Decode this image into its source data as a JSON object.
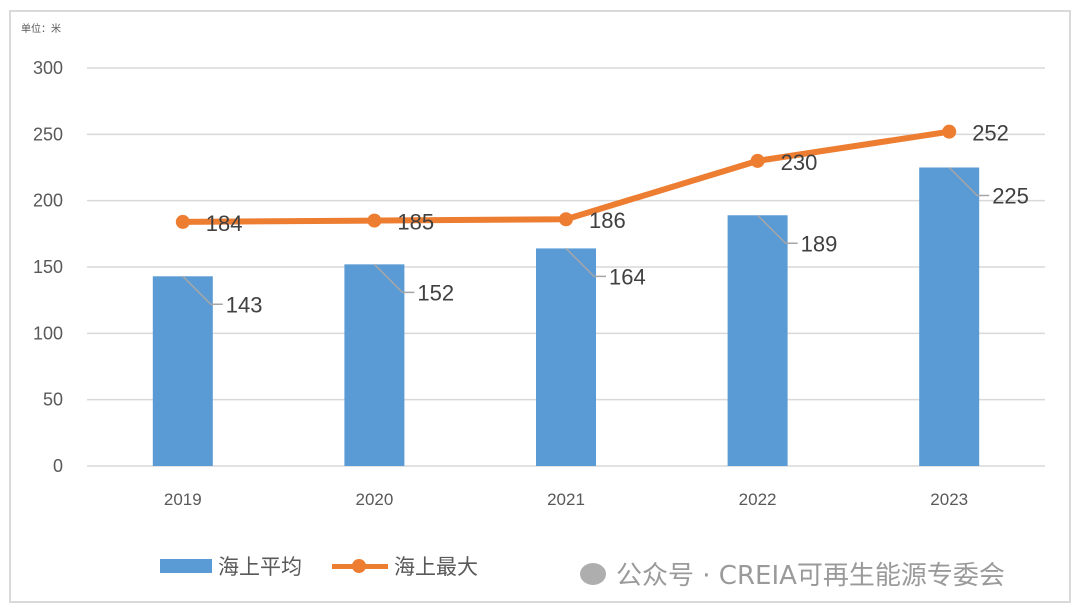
{
  "chart_data": {
    "type": "bar+line",
    "unit_label": "单位：米",
    "categories": [
      "2019",
      "2020",
      "2021",
      "2022",
      "2023"
    ],
    "series": [
      {
        "name": "海上平均",
        "type": "bar",
        "color": "#5b9bd5",
        "values": [
          143,
          152,
          164,
          189,
          225
        ]
      },
      {
        "name": "海上最大",
        "type": "line",
        "color": "#ed7d31",
        "values": [
          184,
          185,
          186,
          230,
          252
        ]
      }
    ],
    "ylim": [
      0,
      300
    ],
    "yticks": [
      0,
      50,
      100,
      150,
      200,
      250,
      300
    ],
    "grid": true,
    "legend_position": "bottom"
  },
  "watermark": "公众号 · CREIA可再生能源专委会"
}
